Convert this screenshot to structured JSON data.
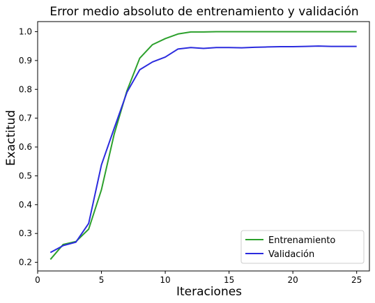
{
  "chart_data": {
    "type": "line",
    "title": "Error medio absoluto de entrenamiento y validación",
    "xlabel": "Iteraciones",
    "ylabel": "Exactitud",
    "xlim": [
      0,
      26
    ],
    "ylim": [
      0.17,
      1.035
    ],
    "xticks": [
      0,
      5,
      10,
      15,
      20,
      25
    ],
    "yticks": [
      0.2,
      0.3,
      0.4,
      0.5,
      0.6,
      0.7,
      0.8,
      0.9,
      1.0
    ],
    "ytick_labels": [
      "0.2",
      "0.3",
      "0.4",
      "0.5",
      "0.6",
      "0.7",
      "0.8",
      "0.9",
      "1.0"
    ],
    "grid": false,
    "legend_position": "bottom-right",
    "x": [
      1,
      2,
      3,
      4,
      5,
      6,
      7,
      8,
      9,
      10,
      11,
      12,
      13,
      14,
      15,
      16,
      17,
      18,
      19,
      20,
      21,
      22,
      23,
      24,
      25
    ],
    "series": [
      {
        "name": "Entrenamiento",
        "color": "#2ca02c",
        "values": [
          0.21,
          0.262,
          0.272,
          0.315,
          0.452,
          0.645,
          0.795,
          0.908,
          0.955,
          0.976,
          0.992,
          0.999,
          0.999,
          1.0,
          1.0,
          1.0,
          1.0,
          1.0,
          1.0,
          1.0,
          1.0,
          1.0,
          1.0,
          1.0,
          1.0
        ]
      },
      {
        "name": "Validación",
        "color": "#2b2bde",
        "values": [
          0.234,
          0.258,
          0.27,
          0.335,
          0.538,
          0.665,
          0.79,
          0.868,
          0.895,
          0.912,
          0.94,
          0.945,
          0.942,
          0.945,
          0.945,
          0.944,
          0.946,
          0.947,
          0.948,
          0.948,
          0.949,
          0.95,
          0.949,
          0.949,
          0.949
        ]
      }
    ]
  }
}
